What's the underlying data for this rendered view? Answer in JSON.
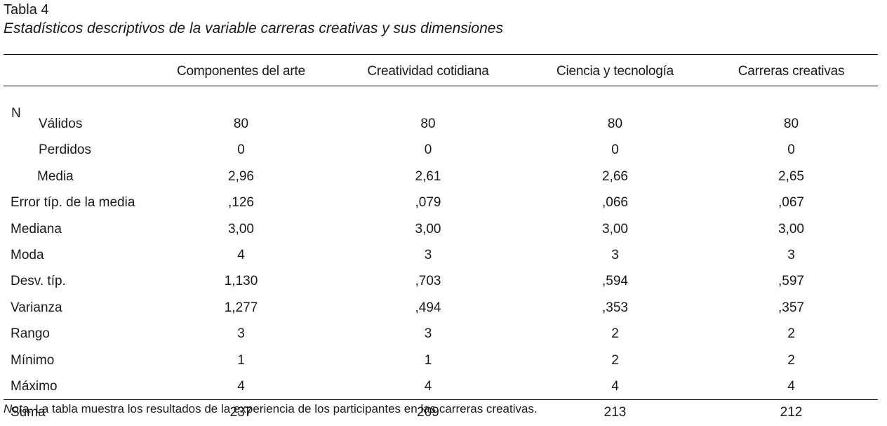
{
  "caption": {
    "label": "Tabla 4",
    "title": "Estadísticos descriptivos de la variable carreras creativas y sus dimensiones"
  },
  "table": {
    "columns": [
      "Componentes del arte",
      "Creatividad cotidiana",
      "Ciencia y tecnología",
      "Carreras creativas"
    ],
    "n_group_label": "N",
    "rows": [
      {
        "label": "Válidos",
        "values": [
          "80",
          "80",
          "80",
          "80"
        ]
      },
      {
        "label": "Perdidos",
        "values": [
          "0",
          "0",
          "0",
          "0"
        ]
      },
      {
        "label": "Media",
        "values": [
          "2,96",
          "2,61",
          "2,66",
          "2,65"
        ]
      },
      {
        "label": "Error típ. de la media",
        "values": [
          ",126",
          ",079",
          ",066",
          ",067"
        ]
      },
      {
        "label": "Mediana",
        "values": [
          "3,00",
          "3,00",
          "3,00",
          "3,00"
        ]
      },
      {
        "label": "Moda",
        "values": [
          "4",
          "3",
          "3",
          "3"
        ]
      },
      {
        "label": "Desv. típ.",
        "values": [
          "1,130",
          ",703",
          ",594",
          ",597"
        ]
      },
      {
        "label": "Varianza",
        "values": [
          "1,277",
          ",494",
          ",353",
          ",357"
        ]
      },
      {
        "label": "Rango",
        "values": [
          "3",
          "3",
          "2",
          "2"
        ]
      },
      {
        "label": "Mínimo",
        "values": [
          "1",
          "1",
          "2",
          "2"
        ]
      },
      {
        "label": "Máximo",
        "values": [
          "4",
          "4",
          "4",
          "4"
        ]
      },
      {
        "label": "Suma",
        "values": [
          "237",
          "209",
          "213",
          "212"
        ]
      }
    ]
  },
  "note": {
    "prefix": "Nota.",
    "text": " La tabla muestra los resultados de la experiencia de los participantes en las carreras creativas."
  }
}
